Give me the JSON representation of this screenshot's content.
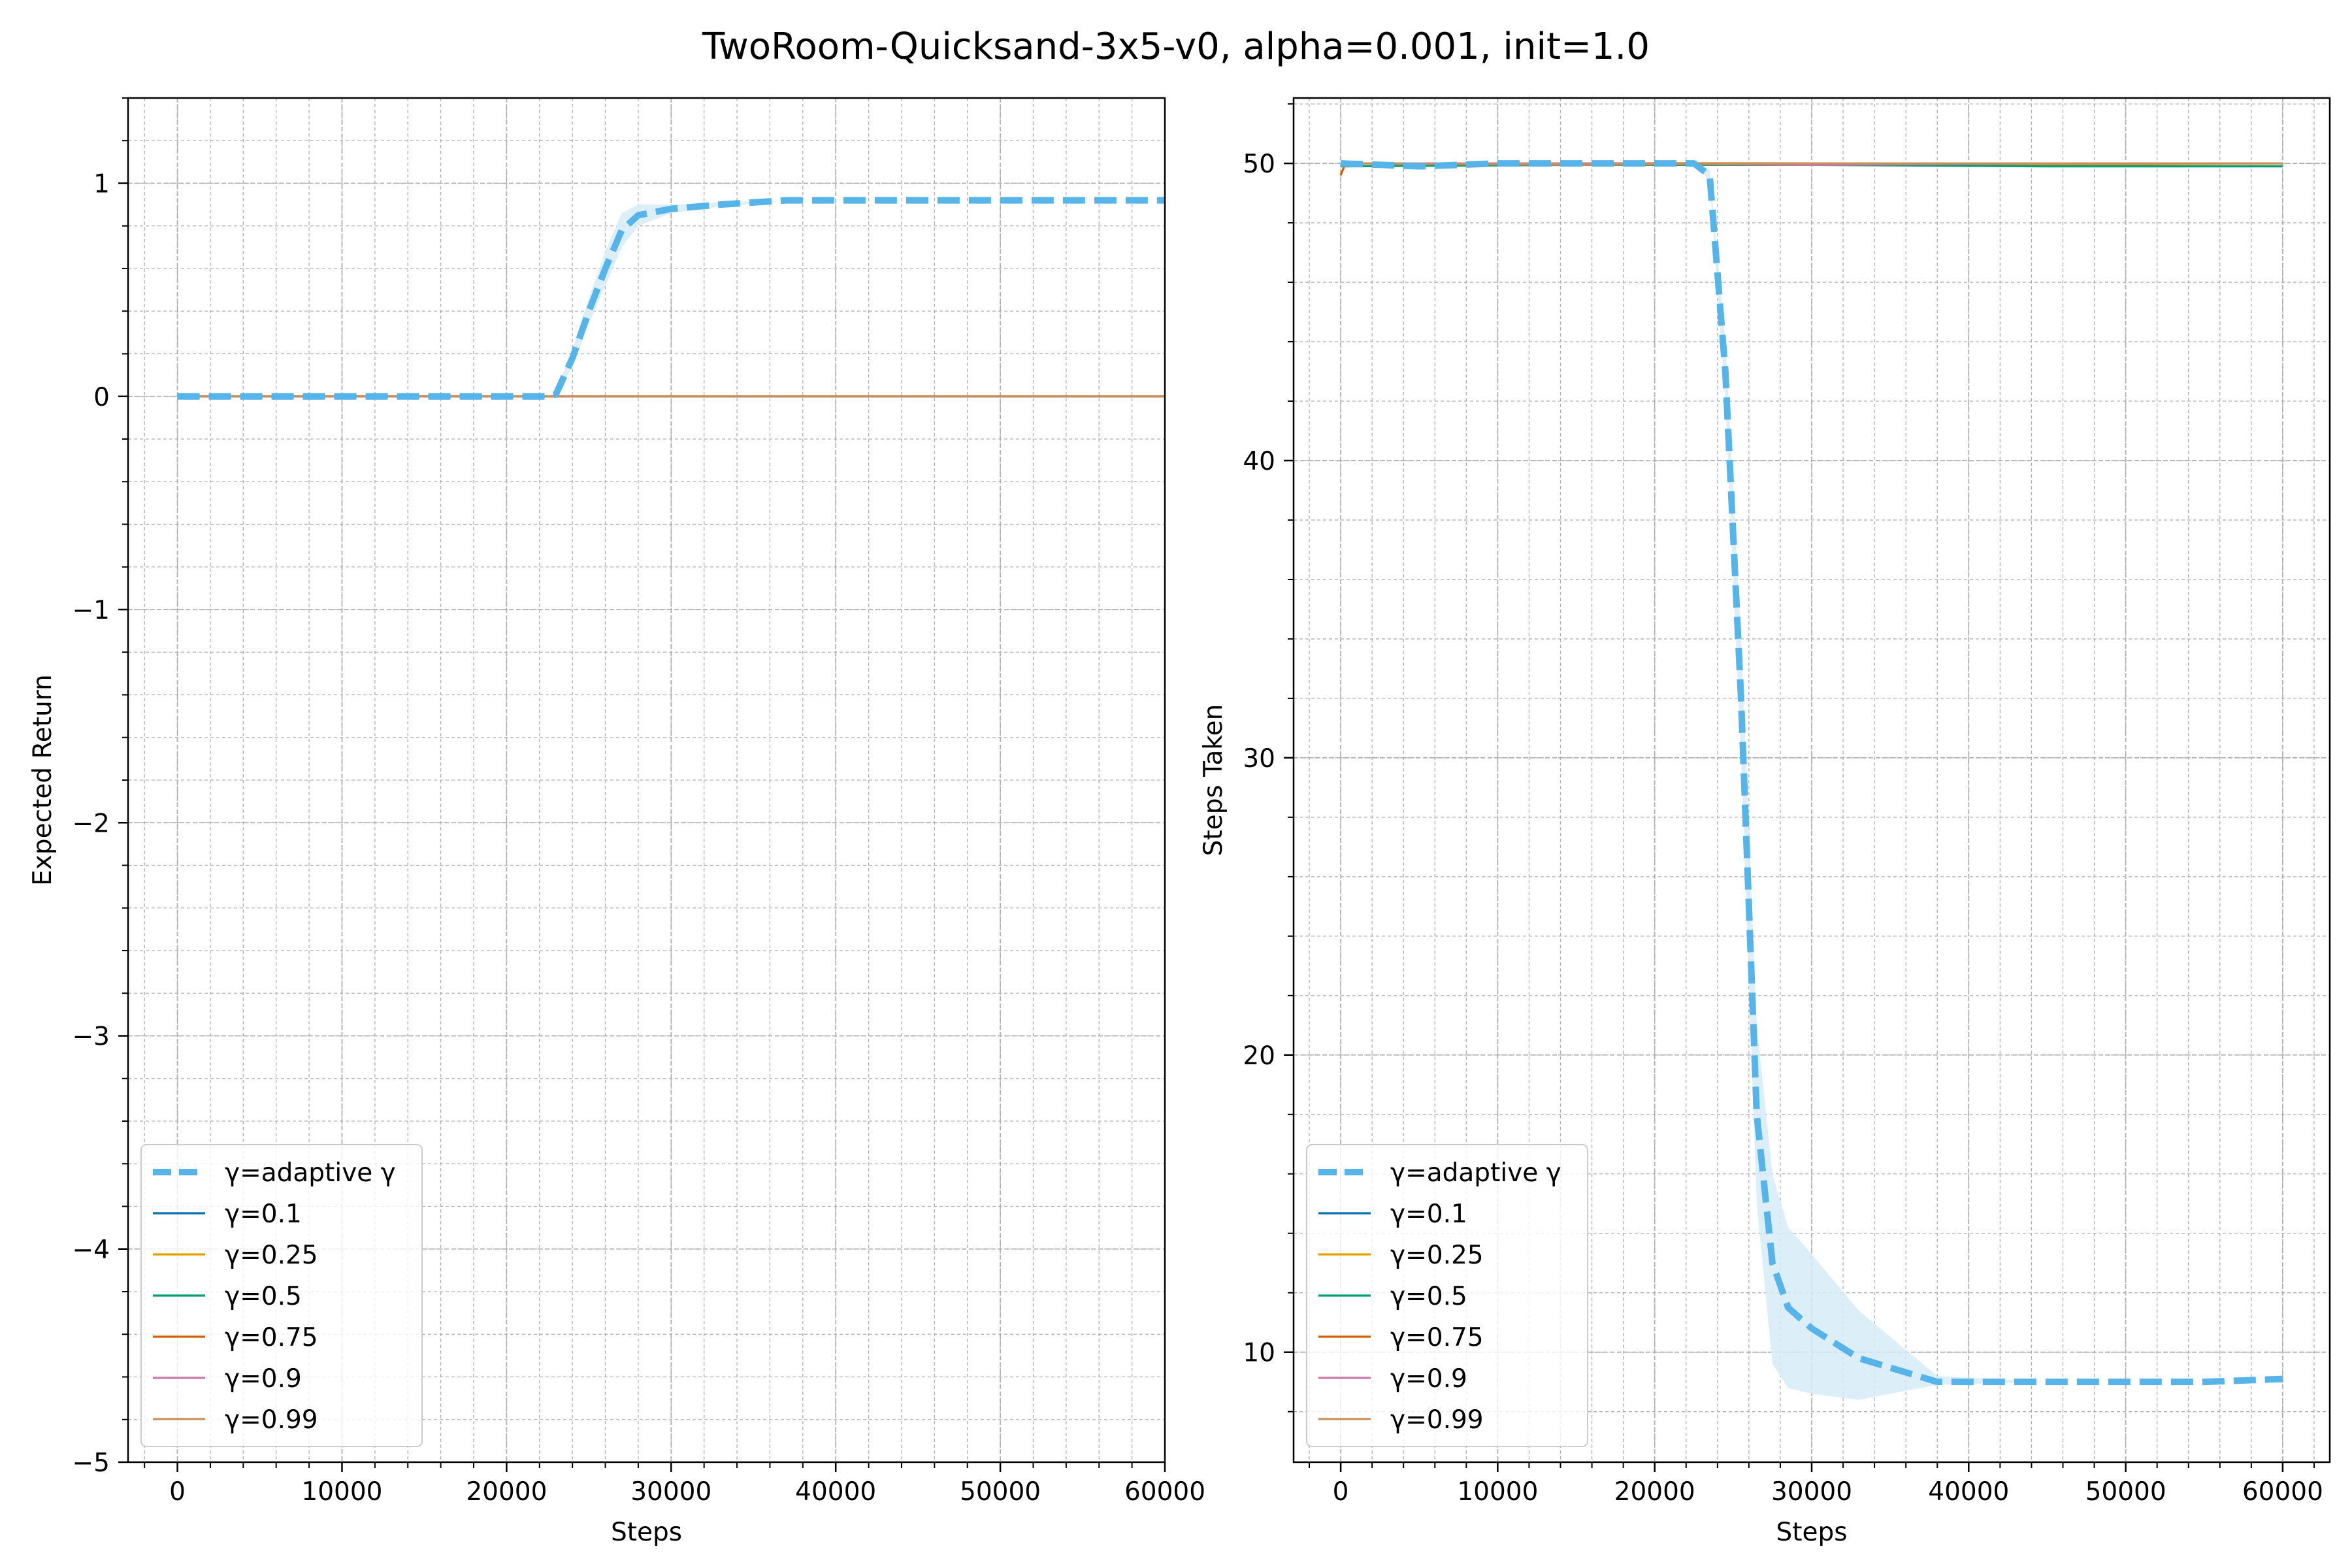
{
  "suptitle": "TwoRoom-Quicksand-3x5-v0, alpha=0.001, init=1.0",
  "colors": {
    "adaptive": "#56b4e9",
    "adaptive_band": "#d6ebf7",
    "g0_1": "#0072b2",
    "g0_25": "#e69f00",
    "g0_5": "#009e73",
    "g0_75": "#d55e00",
    "g0_9": "#cc79a7",
    "g0_99": "#c98f5a",
    "grid": "#b0b0b0"
  },
  "chart_data": [
    {
      "type": "line",
      "title": "",
      "xlabel": "Steps",
      "ylabel": "Expected Return",
      "xlim": [
        -3000,
        60000
      ],
      "ylim": [
        -5,
        1.4
      ],
      "xticks": [
        0,
        10000,
        20000,
        30000,
        40000,
        50000,
        60000
      ],
      "xtick_labels": [
        "0",
        "10000",
        "20000",
        "30000",
        "40000",
        "50000",
        "60000"
      ],
      "yticks": [
        -5,
        -4,
        -3,
        -2,
        -1,
        0,
        1
      ],
      "ytick_labels": [
        "−5",
        "−4",
        "−3",
        "−2",
        "−1",
        "0",
        "1"
      ],
      "grid": true,
      "legend_position": "lower-left",
      "series": [
        {
          "name": "γ=adaptive γ",
          "color_key": "adaptive",
          "style": "dashed",
          "x": [
            0,
            10000,
            20000,
            22500,
            23000,
            24000,
            25000,
            26000,
            27000,
            28000,
            30000,
            33000,
            37000,
            40000,
            50000,
            60000
          ],
          "y": [
            0,
            0,
            0,
            0,
            0.01,
            0.18,
            0.4,
            0.6,
            0.78,
            0.85,
            0.88,
            0.9,
            0.92,
            0.92,
            0.92,
            0.92
          ],
          "band_upper": [
            0,
            0,
            0,
            0,
            0.02,
            0.22,
            0.46,
            0.68,
            0.86,
            0.9,
            0.9,
            0.91,
            0.92,
            0.92,
            0.92,
            0.92
          ],
          "band_lower": [
            0,
            0,
            0,
            0,
            0.0,
            0.14,
            0.34,
            0.52,
            0.7,
            0.8,
            0.86,
            0.89,
            0.92,
            0.92,
            0.92,
            0.92
          ]
        },
        {
          "name": "γ=0.1",
          "color_key": "g0_1",
          "x": [
            0,
            60000
          ],
          "y": [
            0,
            0
          ]
        },
        {
          "name": "γ=0.25",
          "color_key": "g0_25",
          "x": [
            0,
            60000
          ],
          "y": [
            0,
            0
          ]
        },
        {
          "name": "γ=0.5",
          "color_key": "g0_5",
          "x": [
            0,
            60000
          ],
          "y": [
            0,
            0
          ]
        },
        {
          "name": "γ=0.75",
          "color_key": "g0_75",
          "x": [
            0,
            60000
          ],
          "y": [
            0,
            0
          ]
        },
        {
          "name": "γ=0.9",
          "color_key": "g0_9",
          "x": [
            0,
            60000
          ],
          "y": [
            0,
            0
          ]
        },
        {
          "name": "γ=0.99",
          "color_key": "g0_99",
          "x": [
            0,
            60000
          ],
          "y": [
            0,
            0
          ]
        }
      ]
    },
    {
      "type": "line",
      "title": "",
      "xlabel": "Steps",
      "ylabel": "Steps Taken",
      "xlim": [
        -3000,
        63000
      ],
      "ylim": [
        6.3,
        52.2
      ],
      "xticks": [
        0,
        10000,
        20000,
        30000,
        40000,
        50000,
        60000
      ],
      "xtick_labels": [
        "0",
        "10000",
        "20000",
        "30000",
        "40000",
        "50000",
        "60000"
      ],
      "yticks": [
        10,
        20,
        30,
        40,
        50
      ],
      "ytick_labels": [
        "10",
        "20",
        "30",
        "40",
        "50"
      ],
      "grid": true,
      "legend_position": "lower-left",
      "series": [
        {
          "name": "γ=adaptive γ",
          "color_key": "adaptive",
          "style": "dashed",
          "x": [
            0,
            5000,
            10000,
            20000,
            22500,
            23500,
            24500,
            25500,
            26500,
            27500,
            28500,
            30000,
            33000,
            38000,
            45000,
            55000,
            60000
          ],
          "y": [
            50,
            49.9,
            50,
            50,
            50,
            49.6,
            43,
            32,
            18,
            13,
            11.5,
            10.8,
            9.8,
            9.0,
            9.0,
            9.0,
            9.1
          ],
          "band_upper": [
            50,
            49.9,
            50,
            50,
            50,
            49.8,
            44,
            34,
            21,
            16,
            14.2,
            13.3,
            11.4,
            9.2,
            9.0,
            9.0,
            9.1
          ],
          "band_lower": [
            50,
            49.9,
            50,
            50,
            50,
            49.4,
            42,
            30,
            15,
            9.6,
            8.8,
            8.6,
            8.4,
            8.9,
            9.0,
            9.0,
            9.1
          ]
        },
        {
          "name": "γ=0.1",
          "color_key": "g0_1",
          "x": [
            0,
            15000,
            30000,
            45000,
            60000
          ],
          "y": [
            50,
            50,
            50,
            50,
            50
          ]
        },
        {
          "name": "γ=0.25",
          "color_key": "g0_25",
          "x": [
            0,
            15000,
            30000,
            45000,
            60000
          ],
          "y": [
            50,
            49.95,
            50,
            49.95,
            50
          ]
        },
        {
          "name": "γ=0.5",
          "color_key": "g0_5",
          "x": [
            0,
            15000,
            30000,
            45000,
            60000
          ],
          "y": [
            49.9,
            49.95,
            49.95,
            49.9,
            49.9
          ]
        },
        {
          "name": "γ=0.75",
          "color_key": "g0_75",
          "x": [
            0,
            300,
            15000,
            30000,
            45000,
            60000
          ],
          "y": [
            49.6,
            50,
            50,
            50,
            50,
            50
          ]
        },
        {
          "name": "γ=0.9",
          "color_key": "g0_9",
          "x": [
            0,
            15000,
            30000,
            45000,
            60000
          ],
          "y": [
            50,
            50,
            49.95,
            50,
            50
          ]
        },
        {
          "name": "γ=0.99",
          "color_key": "g0_99",
          "x": [
            0,
            15000,
            30000,
            45000,
            60000
          ],
          "y": [
            50,
            49.95,
            50,
            50,
            50
          ]
        }
      ]
    }
  ]
}
